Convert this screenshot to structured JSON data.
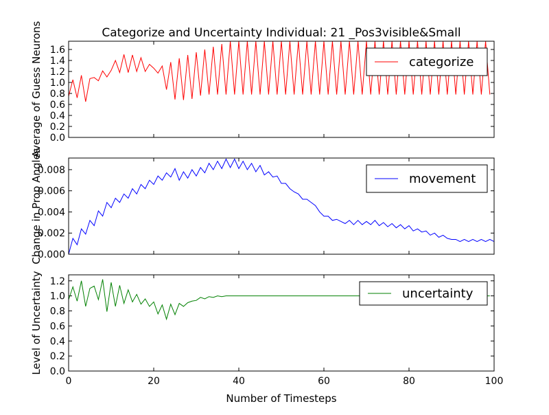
{
  "chart_data": {
    "title": "Categorize and Uncertainty Individual: 21 _Pos3visible&Small",
    "xlabel": "Number of Timesteps",
    "xlim": [
      0,
      100
    ],
    "x_ticks": [
      "0",
      "20",
      "40",
      "60",
      "80",
      "100"
    ],
    "panels": [
      {
        "type": "line",
        "ylabel": "Average of Guess Neurons",
        "ylim": [
          0,
          1.75
        ],
        "y_ticks": [
          "0.0",
          "0.2",
          "0.4",
          "0.6",
          "0.8",
          "1.0",
          "1.2",
          "1.4",
          "1.6"
        ],
        "legend": "top-right",
        "series": [
          {
            "name": "categorize",
            "color": "#ff0000",
            "values": [
              0.75,
              1.05,
              0.72,
              1.13,
              0.65,
              1.07,
              1.09,
              1.03,
              1.21,
              1.1,
              1.22,
              1.4,
              1.18,
              1.51,
              1.18,
              1.5,
              1.2,
              1.45,
              1.2,
              1.33,
              1.26,
              1.17,
              1.3,
              0.87,
              1.37,
              0.69,
              1.44,
              0.68,
              1.5,
              0.7,
              1.55,
              0.76,
              1.6,
              0.78,
              1.65,
              0.78,
              1.7,
              0.78,
              1.75,
              0.78,
              1.75,
              0.78,
              1.75,
              0.78,
              1.75,
              0.78,
              1.75,
              0.78,
              1.75,
              0.78,
              1.75,
              0.78,
              1.75,
              0.78,
              1.75,
              0.78,
              1.75,
              0.78,
              1.75,
              0.78,
              1.75,
              0.78,
              1.75,
              0.78,
              1.75,
              0.78,
              1.75,
              0.78,
              1.75,
              0.78,
              1.75,
              0.78,
              1.75,
              0.78,
              1.75,
              0.78,
              1.75,
              0.78,
              1.75,
              0.78,
              1.75,
              0.78,
              1.75,
              0.78,
              1.75,
              0.78,
              1.75,
              0.78,
              1.75,
              0.78,
              1.75,
              0.78,
              1.75,
              0.78,
              1.75,
              0.78,
              1.75,
              0.78,
              1.75,
              0.78
            ]
          }
        ]
      },
      {
        "type": "line",
        "ylabel": "Change in Prop Angles",
        "ylim": [
          0,
          0.0091
        ],
        "y_ticks": [
          "0.000",
          "0.002",
          "0.004",
          "0.006",
          "0.008"
        ],
        "legend": "top-right",
        "series": [
          {
            "name": "movement",
            "color": "#0000ff",
            "values": [
              0.0,
              0.0015,
              0.0009,
              0.0024,
              0.0019,
              0.0032,
              0.0027,
              0.0041,
              0.0036,
              0.0049,
              0.0044,
              0.0053,
              0.0049,
              0.0057,
              0.0053,
              0.0062,
              0.0057,
              0.0066,
              0.0062,
              0.007,
              0.0066,
              0.0074,
              0.007,
              0.0077,
              0.0073,
              0.0081,
              0.007,
              0.0078,
              0.0072,
              0.008,
              0.0074,
              0.0082,
              0.0077,
              0.0086,
              0.008,
              0.0088,
              0.0081,
              0.009,
              0.0082,
              0.009,
              0.0081,
              0.0088,
              0.008,
              0.0086,
              0.0078,
              0.0084,
              0.0075,
              0.0078,
              0.0073,
              0.0074,
              0.0067,
              0.0067,
              0.0062,
              0.0059,
              0.0057,
              0.0052,
              0.0052,
              0.0049,
              0.0046,
              0.004,
              0.0036,
              0.0036,
              0.0032,
              0.0033,
              0.0031,
              0.0029,
              0.0032,
              0.0028,
              0.0032,
              0.0028,
              0.0031,
              0.0028,
              0.0032,
              0.0027,
              0.003,
              0.0026,
              0.0029,
              0.0025,
              0.0028,
              0.0024,
              0.0027,
              0.0022,
              0.0024,
              0.0021,
              0.0022,
              0.0018,
              0.002,
              0.0016,
              0.0018,
              0.0015,
              0.0014,
              0.0014,
              0.0012,
              0.0014,
              0.0012,
              0.0014,
              0.0012,
              0.0014,
              0.0012,
              0.0014,
              0.0012
            ]
          }
        ]
      },
      {
        "type": "line",
        "ylabel": "Level of Uncertainty",
        "ylim": [
          0,
          1.28
        ],
        "y_ticks": [
          "0.0",
          "0.2",
          "0.4",
          "0.6",
          "0.8",
          "1.0",
          "1.2"
        ],
        "legend": "top-right",
        "series": [
          {
            "name": "uncertainty",
            "color": "#008000",
            "values": [
              0.95,
              1.12,
              0.93,
              1.2,
              0.86,
              1.1,
              1.13,
              0.95,
              1.22,
              0.79,
              1.18,
              0.86,
              1.14,
              0.9,
              1.08,
              0.92,
              1.02,
              0.89,
              0.96,
              0.86,
              0.92,
              0.76,
              0.88,
              0.69,
              0.89,
              0.75,
              0.9,
              0.86,
              0.91,
              0.93,
              0.94,
              0.98,
              0.96,
              0.99,
              0.98,
              1.0,
              0.99,
              1.0,
              1.0,
              1.0,
              1.0,
              1.0,
              1.0,
              1.0,
              1.0,
              1.0,
              1.0,
              1.0,
              1.0,
              1.0,
              1.0,
              1.0,
              1.0,
              1.0,
              1.0,
              1.0,
              1.0,
              1.0,
              1.0,
              1.0,
              1.0,
              1.0,
              1.0,
              1.0,
              1.0,
              1.0,
              1.0,
              1.0,
              1.0,
              1.0,
              1.0,
              1.0,
              1.0,
              1.0,
              1.0,
              1.0,
              1.0,
              1.0,
              1.0,
              1.0,
              1.0,
              1.0,
              1.0,
              1.0,
              1.0,
              1.0,
              1.0,
              1.0,
              1.0,
              1.0,
              1.0,
              1.0,
              1.0,
              1.0,
              1.0,
              1.0,
              1.0,
              1.0,
              1.0,
              1.0
            ]
          }
        ]
      }
    ]
  }
}
